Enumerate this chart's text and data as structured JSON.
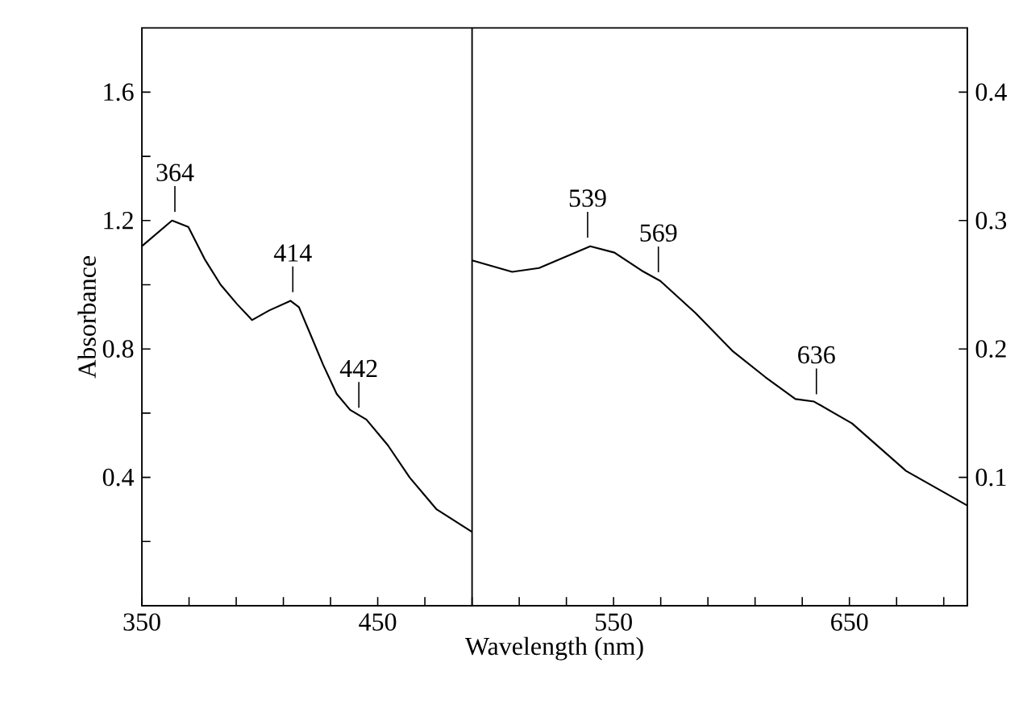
{
  "chart_data": {
    "type": "line",
    "xlabel": "Wavelength (nm)",
    "ylabel": "Absorbance",
    "xlim": [
      350,
      700
    ],
    "ylim": [
      0,
      1.8
    ],
    "y2lim": [
      0,
      0.45
    ],
    "xticks": [
      350,
      {
        "value": 370,
        "label": null
      },
      {
        "value": 390,
        "label": null
      },
      {
        "value": 410,
        "label": null
      },
      {
        "value": 430,
        "label": null
      },
      450,
      {
        "value": 470,
        "label": null
      },
      {
        "value": 490,
        "label": null
      },
      {
        "value": 510,
        "label": null
      },
      {
        "value": 530,
        "label": null
      },
      550,
      {
        "value": 570,
        "label": null
      },
      {
        "value": 590,
        "label": null
      },
      {
        "value": 610,
        "label": null
      },
      {
        "value": 630,
        "label": null
      },
      650,
      {
        "value": 670,
        "label": null
      },
      {
        "value": 690,
        "label": null
      }
    ],
    "yticks": [
      {
        "value": 0.2,
        "label": null
      },
      0.4,
      {
        "value": 0.6,
        "label": null
      },
      0.8,
      {
        "value": 1.0,
        "label": null
      },
      1.2,
      {
        "value": 1.4,
        "label": null
      },
      1.6
    ],
    "y2ticks": [
      0.1,
      0.2,
      0.3,
      0.4
    ],
    "marker": "none",
    "series": [
      {
        "color": "#000000",
        "x": [
          350,
          362.8,
          369.7,
          376.6,
          383.4,
          390.3,
          396.7,
          404,
          413,
          416.6,
          421.2,
          426.9,
          432.6,
          438.3,
          445.2,
          454.3,
          463.5,
          475,
          490
        ],
        "values": [
          1.12,
          1.2,
          1.18,
          1.08,
          1.0,
          0.94,
          0.89,
          0.92,
          0.95,
          0.93,
          0.85,
          0.75,
          0.66,
          0.61,
          0.58,
          0.5,
          0.4,
          0.3,
          0.23
        ]
      },
      {
        "color": "#000000",
        "axis": "y2",
        "x": [
          490,
          507,
          518.4,
          540.1,
          550.4,
          561.9,
          569.8,
          584.7,
          600.7,
          614.4,
          627.1,
          635,
          651.1,
          674,
          700
        ],
        "values": [
          0.269,
          0.26,
          0.263,
          0.28,
          0.275,
          0.261,
          0.253,
          0.228,
          0.198,
          0.178,
          0.161,
          0.159,
          0.142,
          0.105,
          0.078
        ]
      }
    ],
    "ref_lines": [
      {
        "axis": "x",
        "value": 490,
        "color": "#000000"
      }
    ],
    "annotations": [
      {
        "text": "364",
        "x": 364,
        "y": 1.2
      },
      {
        "text": "414",
        "x": 414,
        "y": 0.95
      },
      {
        "text": "442",
        "x": 442,
        "y": 0.59
      },
      {
        "text": "539",
        "x": 539,
        "y": 1.12
      },
      {
        "text": "569",
        "x": 569,
        "y": 1.012
      },
      {
        "text": "636",
        "x": 636,
        "y": 0.632
      }
    ]
  }
}
